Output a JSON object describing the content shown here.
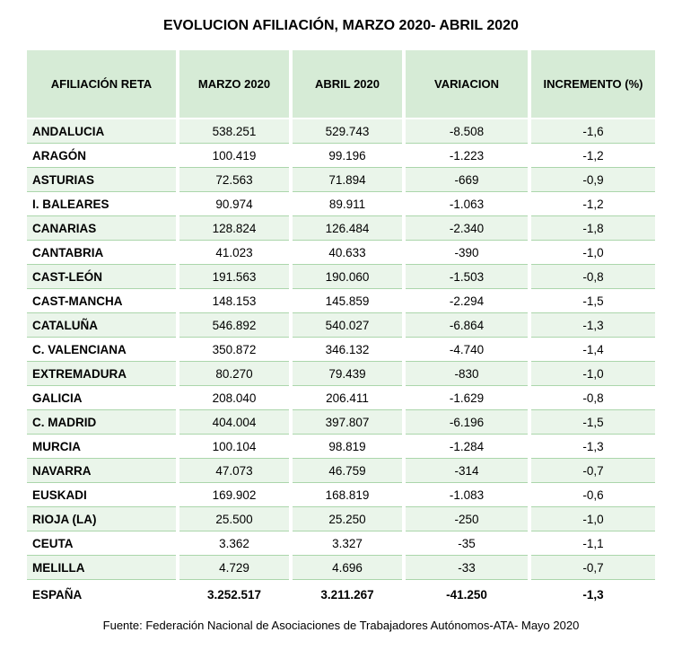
{
  "title": "EVOLUCION AFILIACIÓN,  MARZO 2020- ABRIL 2020",
  "columns": [
    "AFILIACIÓN RETA",
    "MARZO 2020",
    "ABRIL 2020",
    "VARIACION",
    "INCREMENTO (%)"
  ],
  "rows": [
    {
      "region": "ANDALUCIA",
      "marzo": "538.251",
      "abril": "529.743",
      "var": "-8.508",
      "pct": "-1,6"
    },
    {
      "region": "ARAGÓN",
      "marzo": "100.419",
      "abril": "99.196",
      "var": "-1.223",
      "pct": "-1,2"
    },
    {
      "region": "ASTURIAS",
      "marzo": "72.563",
      "abril": "71.894",
      "var": "-669",
      "pct": "-0,9"
    },
    {
      "region": "I. BALEARES",
      "marzo": "90.974",
      "abril": "89.911",
      "var": "-1.063",
      "pct": "-1,2"
    },
    {
      "region": "CANARIAS",
      "marzo": "128.824",
      "abril": "126.484",
      "var": "-2.340",
      "pct": "-1,8"
    },
    {
      "region": "CANTABRIA",
      "marzo": "41.023",
      "abril": "40.633",
      "var": "-390",
      "pct": "-1,0"
    },
    {
      "region": "CAST-LEÓN",
      "marzo": "191.563",
      "abril": "190.060",
      "var": "-1.503",
      "pct": "-0,8"
    },
    {
      "region": "CAST-MANCHA",
      "marzo": "148.153",
      "abril": "145.859",
      "var": "-2.294",
      "pct": "-1,5"
    },
    {
      "region": "CATALUÑA",
      "marzo": "546.892",
      "abril": "540.027",
      "var": "-6.864",
      "pct": "-1,3"
    },
    {
      "region": "C. VALENCIANA",
      "marzo": "350.872",
      "abril": "346.132",
      "var": "-4.740",
      "pct": "-1,4"
    },
    {
      "region": "EXTREMADURA",
      "marzo": "80.270",
      "abril": "79.439",
      "var": "-830",
      "pct": "-1,0"
    },
    {
      "region": "GALICIA",
      "marzo": "208.040",
      "abril": "206.411",
      "var": "-1.629",
      "pct": "-0,8"
    },
    {
      "region": "C. MADRID",
      "marzo": "404.004",
      "abril": "397.807",
      "var": "-6.196",
      "pct": "-1,5"
    },
    {
      "region": "MURCIA",
      "marzo": "100.104",
      "abril": "98.819",
      "var": "-1.284",
      "pct": "-1,3"
    },
    {
      "region": "NAVARRA",
      "marzo": "47.073",
      "abril": "46.759",
      "var": "-314",
      "pct": "-0,7"
    },
    {
      "region": "EUSKADI",
      "marzo": "169.902",
      "abril": "168.819",
      "var": "-1.083",
      "pct": "-0,6"
    },
    {
      "region": "RIOJA (LA)",
      "marzo": "25.500",
      "abril": "25.250",
      "var": "-250",
      "pct": "-1,0"
    },
    {
      "region": "CEUTA",
      "marzo": "3.362",
      "abril": "3.327",
      "var": "-35",
      "pct": "-1,1"
    },
    {
      "region": "MELILLA",
      "marzo": "4.729",
      "abril": "4.696",
      "var": "-33",
      "pct": "-0,7"
    }
  ],
  "total": {
    "region": "ESPAÑA",
    "marzo": "3.252.517",
    "abril": "3.211.267",
    "var": "-41.250",
    "pct": "-1,3"
  },
  "source": "Fuente: Federación Nacional de Asociaciones de Trabajadores Autónomos-ATA- Mayo 2020",
  "style": {
    "header_bg": "#d6ebd6",
    "row_stripe_bg": "#eaf5ea",
    "row_border": "#abd6ab",
    "title_fontsize": 16,
    "header_fontsize": 13,
    "cell_fontsize": 13.5,
    "source_fontsize": 13,
    "col_widths_pct": [
      24,
      18,
      18,
      20,
      20
    ]
  }
}
